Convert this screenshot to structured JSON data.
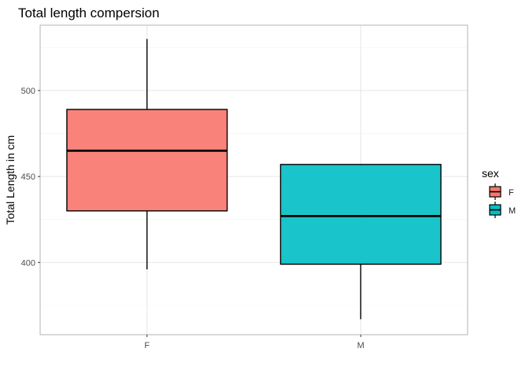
{
  "chart_data": {
    "type": "boxplot",
    "title": "Total length compersion",
    "xlabel": "",
    "ylabel": "Total Length in cm",
    "categories": [
      "F",
      "M"
    ],
    "y_ticks": [
      400,
      450,
      500
    ],
    "ylim": [
      358,
      538
    ],
    "grid": true,
    "legend": {
      "title": "sex",
      "position": "right",
      "entries": [
        "F",
        "M"
      ]
    },
    "series": [
      {
        "category": "F",
        "min": 396,
        "q1": 430,
        "median": 465,
        "q3": 489,
        "max": 530,
        "color": "#F8766D"
      },
      {
        "category": "M",
        "min": 367,
        "q1": 399,
        "median": 427,
        "q3": 457,
        "max": 457,
        "color": "#00BFC4"
      }
    ]
  }
}
